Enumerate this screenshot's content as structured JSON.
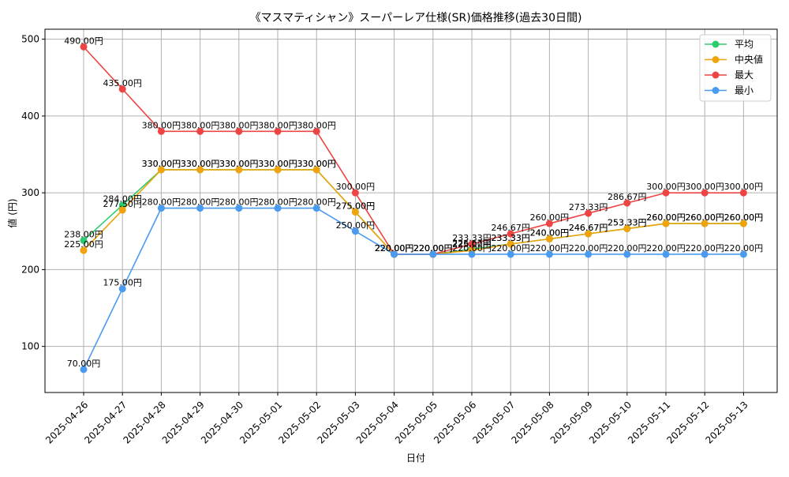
{
  "chart_data": {
    "type": "line",
    "title": "《マスマティシャン》スーパーレア仕様(SR)価格推移(過去30日間)",
    "xlabel": "日付",
    "ylabel": "値 (円)",
    "categories": [
      "2025-04-26",
      "2025-04-27",
      "2025-04-28",
      "2025-04-29",
      "2025-04-30",
      "2025-05-01",
      "2025-05-02",
      "2025-05-03",
      "2025-05-04",
      "2025-05-05",
      "2025-05-06",
      "2025-05-07",
      "2025-05-08",
      "2025-05-09",
      "2025-05-10",
      "2025-05-11",
      "2025-05-12",
      "2025-05-13"
    ],
    "ylim": [
      40,
      513
    ],
    "yticks": [
      100,
      200,
      300,
      400,
      500
    ],
    "grid": true,
    "legend_position": "top-right",
    "value_suffix": "円",
    "series": [
      {
        "name": "平均",
        "color": "#2ecc71",
        "values": [
          238,
          284,
          330,
          330,
          330,
          330,
          330,
          275,
          220,
          220,
          226.67,
          233.33,
          240,
          246.67,
          253.33,
          260,
          260,
          260
        ],
        "labels": [
          "238.00円",
          "284.00円",
          "330.00円",
          "330.00円",
          "330.00円",
          "330.00円",
          "330.00円",
          "275.00円",
          "220.00円",
          "220.00円",
          "226.67円",
          "233.33円",
          "240.00円",
          "246.67円",
          "253.33円",
          "260.00円",
          "260.00円",
          "260.00円"
        ]
      },
      {
        "name": "中央値",
        "color": "#f0a30a",
        "values": [
          225,
          277.5,
          330,
          330,
          330,
          330,
          330,
          275,
          220,
          220,
          225,
          233.33,
          240,
          246.67,
          253.33,
          260,
          260,
          260
        ],
        "labels": [
          "225.00円",
          "277.50円",
          "330.00円",
          "330.00円",
          "330.00円",
          "330.00円",
          "330.00円",
          "275.00円",
          "220.00円",
          "220.00円",
          "225.00円",
          "233.33円",
          "240.00円",
          "246.67円",
          "253.33円",
          "260.00円",
          "260.00円",
          "260.00円"
        ]
      },
      {
        "name": "最大",
        "color": "#ef4444",
        "values": [
          490,
          435,
          380,
          380,
          380,
          380,
          380,
          300,
          220,
          220,
          233.33,
          246.67,
          260,
          273.33,
          286.67,
          300,
          300,
          300
        ],
        "labels": [
          "490.00円",
          "435.00円",
          "380.00円",
          "380.00円",
          "380.00円",
          "380.00円",
          "380.00円",
          "300.00円",
          "220.00円",
          "220.00円",
          "233.33円",
          "246.67円",
          "260.00円",
          "273.33円",
          "286.67円",
          "300.00円",
          "300.00円",
          "300.00円"
        ]
      },
      {
        "name": "最小",
        "color": "#4a9bf0",
        "values": [
          70,
          175,
          280,
          280,
          280,
          280,
          280,
          250,
          220,
          220,
          220,
          220,
          220,
          220,
          220,
          220,
          220,
          220
        ],
        "labels": [
          "70.00円",
          "175.00円",
          "280.00円",
          "280.00円",
          "280.00円",
          "280.00円",
          "280.00円",
          "250.00円",
          "220.00円",
          "220.00円",
          "220.00円",
          "220.00円",
          "220.00円",
          "220.00円",
          "220.00円",
          "220.00円",
          "220.00円",
          "220.00円"
        ]
      }
    ]
  }
}
